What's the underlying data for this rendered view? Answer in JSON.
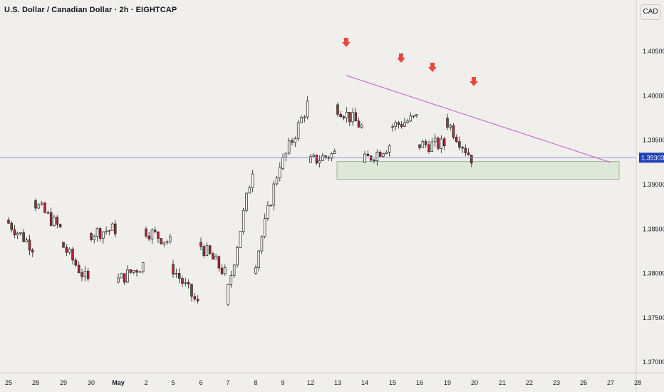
{
  "header": {
    "title": "U.S. Dollar / Canadian Dollar · 2h · EIGHTCAP",
    "currency": "CAD"
  },
  "colors": {
    "background": "#f0efeb",
    "up_candle": "#ffffff",
    "down_candle": "#b22833",
    "candle_outline": "#1e1e1e",
    "trendline": "#c35ac9",
    "current_price_line": "#8f95d6",
    "price_badge": "#1e3fb5",
    "support_zone_fill": "#dde8d8",
    "support_zone_border": "#8fa88a",
    "arrow": "#e8483f"
  },
  "chart_data": {
    "type": "candlestick",
    "title": "U.S. Dollar / Canadian Dollar · 2h · EIGHTCAP",
    "y_ticks": [
      "1.40500",
      "1.40000",
      "1.39500",
      "1.39000",
      "1.38500",
      "1.38000",
      "1.37500",
      "1.37000"
    ],
    "y_tick_values": [
      1.405,
      1.4,
      1.395,
      1.39,
      1.385,
      1.38,
      1.375,
      1.37
    ],
    "ylim": [
      1.3688,
      1.4108
    ],
    "x_ticks": [
      "25",
      "28",
      "29",
      "30",
      "May",
      "2",
      "5",
      "6",
      "7",
      "8",
      "9",
      "12",
      "13",
      "14",
      "15",
      "16",
      "19",
      "20",
      "21",
      "22",
      "23",
      "26",
      "27",
      "28"
    ],
    "x_tick_bold": [
      "May"
    ],
    "current_price": 1.39303,
    "current_price_label": "1.39303",
    "support_zone": {
      "low": 1.3906,
      "high": 1.3926
    },
    "trendline": {
      "start": {
        "x": "13",
        "y": 1.4023
      },
      "end": {
        "x": "27",
        "y": 1.3925
      }
    },
    "bearish_arrows_near": [
      "13",
      "15",
      "16",
      "20"
    ],
    "ohlc_approx": [
      {
        "date": "25",
        "open": 1.386,
        "close": 1.3882
      },
      {
        "date": "28",
        "open": 1.3882,
        "close": 1.383
      },
      {
        "date": "29",
        "open": 1.3835,
        "close": 1.385
      },
      {
        "date": "30",
        "open": 1.3845,
        "close": 1.379
      },
      {
        "date": "May",
        "open": 1.379,
        "close": 1.385
      },
      {
        "date": "2",
        "open": 1.385,
        "close": 1.381
      },
      {
        "date": "5",
        "open": 1.381,
        "close": 1.3835
      },
      {
        "date": "6",
        "open": 1.3835,
        "close": 1.3765
      },
      {
        "date": "7",
        "open": 1.3765,
        "close": 1.38
      },
      {
        "date": "8",
        "open": 1.38,
        "close": 1.3918
      },
      {
        "date": "9",
        "open": 1.3918,
        "close": 1.3925
      },
      {
        "date": "12",
        "open": 1.3925,
        "close": 1.399
      },
      {
        "date": "13",
        "open": 1.399,
        "close": 1.3935
      },
      {
        "date": "14",
        "open": 1.3925,
        "close": 1.3965
      },
      {
        "date": "15",
        "open": 1.3965,
        "close": 1.3945
      },
      {
        "date": "16",
        "open": 1.3945,
        "close": 1.3975
      },
      {
        "date": "19",
        "open": 1.3975,
        "close": 1.3945
      },
      {
        "date": "20",
        "open": 1.395,
        "close": 1.393
      }
    ]
  }
}
